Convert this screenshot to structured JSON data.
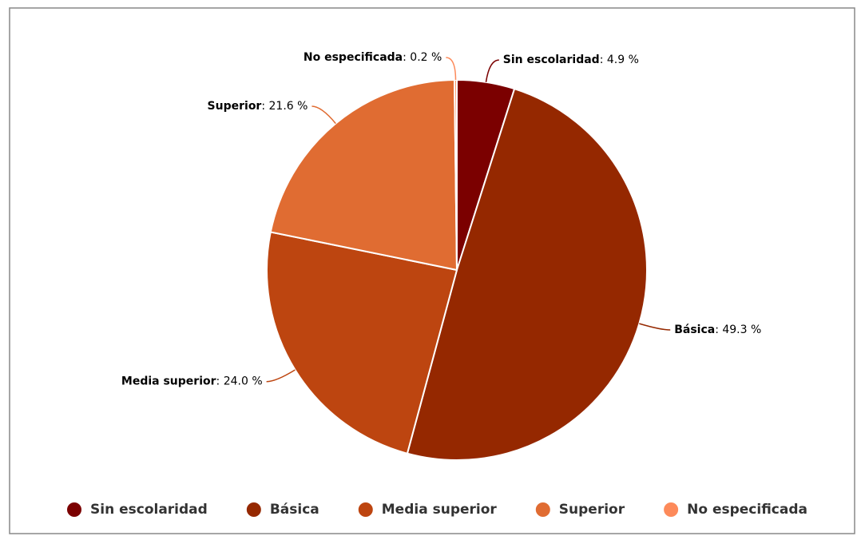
{
  "chart_data": {
    "type": "pie",
    "categories": [
      "Sin escolaridad",
      "Básica",
      "Media superior",
      "Superior",
      "No especificada"
    ],
    "values": [
      4.9,
      49.3,
      24.0,
      21.6,
      0.2
    ],
    "value_labels": [
      ": 4.9 %",
      ": 49.3 %",
      ": 24.0 %",
      ": 21.6 %",
      ": 0.2 %"
    ],
    "colors": [
      "#7b0000",
      "#952800",
      "#bd4510",
      "#e06c32",
      "#fd8a5a"
    ],
    "legend": "bottom"
  }
}
